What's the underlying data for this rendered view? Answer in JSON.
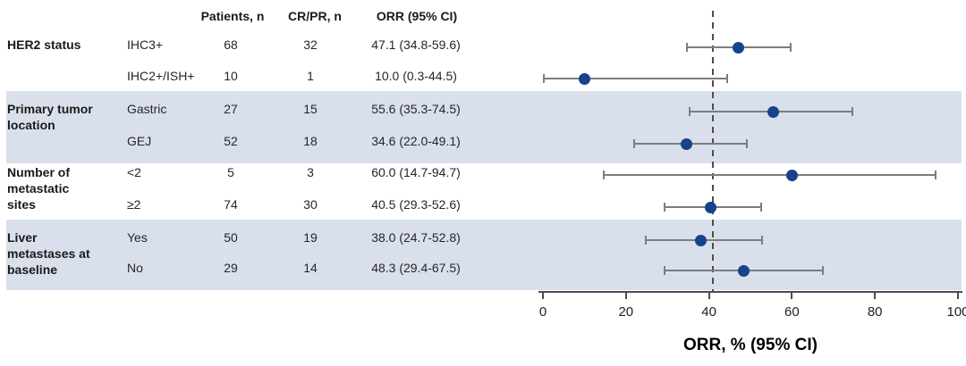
{
  "chart_data": {
    "type": "forest",
    "title": "",
    "columns": [
      "Patients, n",
      "CR/PR, n",
      "ORR (95% CI)"
    ],
    "axis": {
      "min": 0,
      "max": 100,
      "ticks": [
        0,
        20,
        40,
        60,
        80,
        100
      ],
      "xlabel": "ORR, % (95% CI)",
      "reference_line_value": 41,
      "grid": false
    },
    "groups": [
      {
        "label": "HER2 status",
        "shaded": false,
        "rows": [
          {
            "subgroup": "IHC3+",
            "patients": "68",
            "crpr": "32",
            "orr_text": "47.1 (34.8-59.6)",
            "est": 47.1,
            "lo": 34.8,
            "hi": 59.6
          },
          {
            "subgroup": "IHC2+/ISH+",
            "patients": "10",
            "crpr": "1",
            "orr_text": "10.0 (0.3-44.5)",
            "est": 10.0,
            "lo": 0.3,
            "hi": 44.5
          }
        ]
      },
      {
        "label": "Primary tumor location",
        "shaded": true,
        "rows": [
          {
            "subgroup": "Gastric",
            "patients": "27",
            "crpr": "15",
            "orr_text": "55.6 (35.3-74.5)",
            "est": 55.6,
            "lo": 35.3,
            "hi": 74.5
          },
          {
            "subgroup": "GEJ",
            "patients": "52",
            "crpr": "18",
            "orr_text": "34.6 (22.0-49.1)",
            "est": 34.6,
            "lo": 22.0,
            "hi": 49.1
          }
        ]
      },
      {
        "label": "Number of metastatic sites",
        "shaded": false,
        "rows": [
          {
            "subgroup": "<2",
            "patients": "5",
            "crpr": "3",
            "orr_text": "60.0 (14.7-94.7)",
            "est": 60.0,
            "lo": 14.7,
            "hi": 94.7
          },
          {
            "subgroup": "≥2",
            "patients": "74",
            "crpr": "30",
            "orr_text": "40.5 (29.3-52.6)",
            "est": 40.5,
            "lo": 29.3,
            "hi": 52.6
          }
        ]
      },
      {
        "label": "Liver metastases at baseline",
        "shaded": true,
        "rows": [
          {
            "subgroup": "Yes",
            "patients": "50",
            "crpr": "19",
            "orr_text": "38.0 (24.7-52.8)",
            "est": 38.0,
            "lo": 24.7,
            "hi": 52.8
          },
          {
            "subgroup": "No",
            "patients": "29",
            "crpr": "14",
            "orr_text": "48.3 (29.4-67.5)",
            "est": 48.3,
            "lo": 29.4,
            "hi": 67.5
          }
        ]
      }
    ],
    "colors": {
      "dot": "#17428c",
      "ci_line": "#7d7d7d",
      "band": "#d9e0ec",
      "reference_line": "#4d4d4d",
      "axis": "#4d4d4d",
      "text": "#1f1f1f"
    },
    "legend": null
  }
}
